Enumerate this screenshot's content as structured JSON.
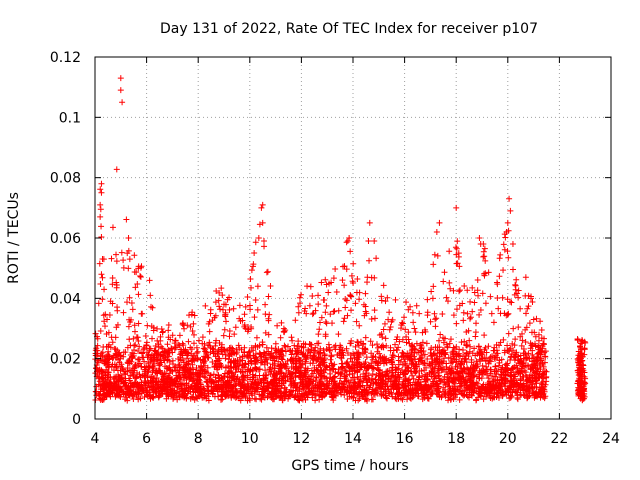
{
  "chart_data": {
    "type": "scatter",
    "title": "Day 131 of 2022, Rate Of TEC Index for receiver p107",
    "xlabel": "GPS time / hours",
    "ylabel": "ROTI / TECUs",
    "xlim": [
      4,
      24
    ],
    "ylim": [
      0,
      0.12
    ],
    "x_ticks": [
      4,
      6,
      8,
      10,
      12,
      14,
      16,
      18,
      20,
      22,
      24
    ],
    "y_ticks": [
      0,
      0.02,
      0.04,
      0.06,
      0.08,
      0.1,
      0.12
    ],
    "x_tick_labels": [
      "4",
      "6",
      "8",
      "10",
      "12",
      "14",
      "16",
      "18",
      "20",
      "22",
      "24"
    ],
    "y_tick_labels": [
      "0",
      "0.02",
      "0.04",
      "0.06",
      "0.08",
      "0.1",
      "0.12"
    ],
    "grid": true,
    "marker": "+",
    "color": "#ff0000",
    "x_coverage": [
      4.0,
      21.5,
      22.7,
      23.0
    ],
    "envelope": [
      [
        4.0,
        0.032
      ],
      [
        4.2,
        0.078
      ],
      [
        4.5,
        0.035
      ],
      [
        5.0,
        0.113
      ],
      [
        5.3,
        0.058
      ],
      [
        5.8,
        0.052
      ],
      [
        6.3,
        0.045
      ],
      [
        7.0,
        0.028
      ],
      [
        7.8,
        0.038
      ],
      [
        8.5,
        0.042
      ],
      [
        9.2,
        0.045
      ],
      [
        9.8,
        0.035
      ],
      [
        10.4,
        0.071
      ],
      [
        11.0,
        0.032
      ],
      [
        11.6,
        0.032
      ],
      [
        12.1,
        0.044
      ],
      [
        12.7,
        0.045
      ],
      [
        13.2,
        0.05
      ],
      [
        13.8,
        0.06
      ],
      [
        14.3,
        0.05
      ],
      [
        14.7,
        0.065
      ],
      [
        15.2,
        0.045
      ],
      [
        15.8,
        0.04
      ],
      [
        16.3,
        0.04
      ],
      [
        16.8,
        0.035
      ],
      [
        17.3,
        0.065
      ],
      [
        17.8,
        0.055
      ],
      [
        18.0,
        0.07
      ],
      [
        18.5,
        0.04
      ],
      [
        19.0,
        0.06
      ],
      [
        19.5,
        0.045
      ],
      [
        20.0,
        0.073
      ],
      [
        20.5,
        0.045
      ],
      [
        21.0,
        0.04
      ],
      [
        21.5,
        0.025
      ],
      [
        22.8,
        0.027
      ],
      [
        23.0,
        0.027
      ]
    ],
    "outliers": [
      {
        "x": 5.0,
        "y": 0.113
      },
      {
        "x": 5.0,
        "y": 0.109
      },
      {
        "x": 5.05,
        "y": 0.105
      },
      {
        "x": 4.25,
        "y": 0.078
      },
      {
        "x": 4.25,
        "y": 0.075
      },
      {
        "x": 4.2,
        "y": 0.071
      },
      {
        "x": 4.2,
        "y": 0.067
      },
      {
        "x": 4.25,
        "y": 0.048
      },
      {
        "x": 10.5,
        "y": 0.071
      },
      {
        "x": 10.45,
        "y": 0.07
      },
      {
        "x": 10.5,
        "y": 0.065
      },
      {
        "x": 10.55,
        "y": 0.059
      },
      {
        "x": 10.35,
        "y": 0.06
      },
      {
        "x": 5.3,
        "y": 0.06
      },
      {
        "x": 5.25,
        "y": 0.055
      },
      {
        "x": 5.35,
        "y": 0.053
      },
      {
        "x": 13.85,
        "y": 0.06
      },
      {
        "x": 13.8,
        "y": 0.059
      },
      {
        "x": 14.65,
        "y": 0.065
      },
      {
        "x": 14.6,
        "y": 0.059
      },
      {
        "x": 17.35,
        "y": 0.065
      },
      {
        "x": 17.25,
        "y": 0.062
      },
      {
        "x": 18.0,
        "y": 0.07
      },
      {
        "x": 18.1,
        "y": 0.055
      },
      {
        "x": 18.9,
        "y": 0.06
      },
      {
        "x": 18.95,
        "y": 0.058
      },
      {
        "x": 20.05,
        "y": 0.073
      },
      {
        "x": 20.1,
        "y": 0.069
      },
      {
        "x": 20.0,
        "y": 0.065
      },
      {
        "x": 19.95,
        "y": 0.062
      },
      {
        "x": 20.2,
        "y": 0.058
      },
      {
        "x": 20.7,
        "y": 0.047
      },
      {
        "x": 20.9,
        "y": 0.04
      }
    ]
  }
}
